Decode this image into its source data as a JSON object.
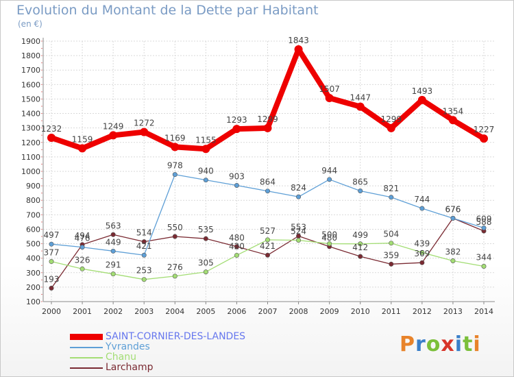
{
  "header": {
    "title": "Evolution du Montant de la Dette par Habitant",
    "unit": "(en €)"
  },
  "logo": {
    "text": "Proxiti",
    "colors": [
      "#e8832a",
      "#3a7fc9",
      "#7bbf3a",
      "#d8352a",
      "#3a7fc9",
      "#7bbf3a",
      "#e8832a"
    ]
  },
  "chart_data": {
    "type": "line",
    "title": "Evolution du Montant de la Dette par Habitant",
    "ylabel": "(en €)",
    "xlabel": "",
    "ylim": [
      100,
      1900
    ],
    "yticks": [
      100,
      200,
      300,
      400,
      500,
      600,
      700,
      800,
      900,
      1000,
      1100,
      1200,
      1300,
      1400,
      1500,
      1600,
      1700,
      1800,
      1900
    ],
    "grid": true,
    "legend_position": "bottom-left",
    "x": [
      "2000",
      "2001",
      "2002",
      "2003",
      "2004",
      "2005",
      "2006",
      "2007",
      "2008",
      "2009",
      "2010",
      "2011",
      "2012",
      "2013",
      "2014"
    ],
    "series": [
      {
        "name": "SAINT-CORNIER-DES-LANDES",
        "color": "#ee0000",
        "text_color": "#6677ee",
        "values": [
          1232,
          1159,
          1249,
          1272,
          1169,
          1155,
          1293,
          1299,
          1843,
          1507,
          1447,
          1299,
          1493,
          1354,
          1227
        ]
      },
      {
        "name": "Yvrandes",
        "color": "#5e9fd6",
        "text_color": "#5e9fd6",
        "values": [
          497,
          476,
          449,
          421,
          978,
          940,
          903,
          864,
          824,
          944,
          865,
          821,
          744,
          676,
          609
        ]
      },
      {
        "name": "Chanu",
        "color": "#a3dd74",
        "text_color": "#a3dd74",
        "values": [
          377,
          326,
          291,
          253,
          276,
          305,
          420,
          527,
          524,
          500,
          499,
          504,
          439,
          382,
          344
        ]
      },
      {
        "name": "Larchamp",
        "color": "#7a2a32",
        "text_color": "#7a2a32",
        "values": [
          193,
          494,
          563,
          514,
          550,
          535,
          480,
          421,
          553,
          480,
          412,
          359,
          369,
          676,
          588
        ]
      }
    ]
  }
}
